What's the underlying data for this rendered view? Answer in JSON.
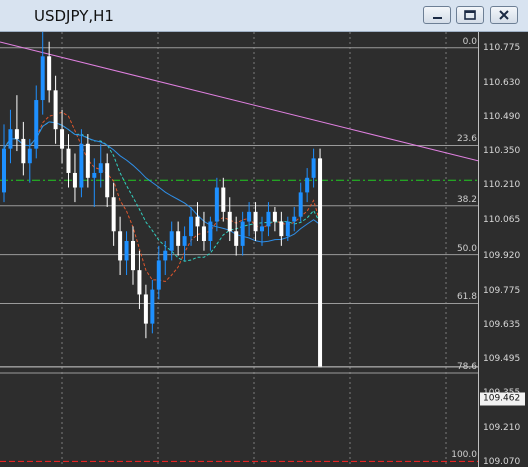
{
  "window": {
    "title": "USDJPY,H1",
    "buttons": {
      "minimize": "minimize-icon",
      "maximize": "maximize-icon",
      "close": "close-icon"
    }
  },
  "price_axis": {
    "labels": [
      "110.775",
      "110.630",
      "110.490",
      "110.350",
      "110.210",
      "110.065",
      "109.920",
      "109.775",
      "109.635",
      "109.495",
      "109.355",
      "109.210",
      "109.070"
    ],
    "current_price": "109.462"
  },
  "fibo_levels": [
    {
      "label": "0.0",
      "price": 110.775
    },
    {
      "label": "23.6",
      "price": 110.373
    },
    {
      "label": "38.2",
      "price": 110.125
    },
    {
      "label": "50.0",
      "price": 109.924
    },
    {
      "label": "61.8",
      "price": 109.723
    },
    {
      "label": "78.6",
      "price": 109.437
    },
    {
      "label": "100.0",
      "price": 109.073
    }
  ],
  "colors": {
    "background": "#2d2d2d",
    "bull": "#1e90ff",
    "bear": "#ffffff",
    "trendline": "#e080e0",
    "fibo": "#9a9a9a",
    "green_level": "#22cc22",
    "red_level": "#ff2222"
  },
  "chart_data": {
    "type": "candlestick",
    "symbol": "USDJPY",
    "timeframe": "H1",
    "ylim": [
      109.05,
      110.84
    ],
    "green_level": 110.23,
    "red_level": 109.09,
    "candles": [
      [
        110.18,
        110.46,
        110.14,
        110.36
      ],
      [
        110.36,
        110.52,
        110.3,
        110.44
      ],
      [
        110.44,
        110.58,
        110.35,
        110.4
      ],
      [
        110.4,
        110.47,
        110.25,
        110.3
      ],
      [
        110.3,
        110.4,
        110.22,
        110.36
      ],
      [
        110.36,
        110.62,
        110.32,
        110.56
      ],
      [
        110.56,
        110.84,
        110.5,
        110.74
      ],
      [
        110.74,
        110.8,
        110.55,
        110.6
      ],
      [
        110.6,
        110.66,
        110.38,
        110.44
      ],
      [
        110.44,
        110.52,
        110.3,
        110.36
      ],
      [
        110.36,
        110.42,
        110.2,
        110.26
      ],
      [
        110.26,
        110.34,
        110.14,
        110.2
      ],
      [
        110.2,
        110.44,
        110.16,
        110.38
      ],
      [
        110.38,
        110.42,
        110.2,
        110.24
      ],
      [
        110.24,
        110.32,
        110.12,
        110.26
      ],
      [
        110.26,
        110.38,
        110.2,
        110.3
      ],
      [
        110.3,
        110.34,
        110.12,
        110.16
      ],
      [
        110.16,
        110.22,
        109.96,
        110.02
      ],
      [
        110.02,
        110.08,
        109.84,
        109.9
      ],
      [
        109.9,
        110.02,
        109.84,
        109.98
      ],
      [
        109.98,
        110.04,
        109.8,
        109.86
      ],
      [
        109.86,
        109.94,
        109.7,
        109.76
      ],
      [
        109.76,
        109.8,
        109.58,
        109.64
      ],
      [
        109.64,
        109.82,
        109.6,
        109.78
      ],
      [
        109.78,
        109.96,
        109.74,
        109.9
      ],
      [
        109.9,
        109.98,
        109.84,
        109.94
      ],
      [
        109.94,
        110.06,
        109.9,
        110.02
      ],
      [
        110.02,
        110.06,
        109.92,
        109.96
      ],
      [
        109.96,
        110.04,
        109.9,
        110.0
      ],
      [
        110.0,
        110.12,
        109.96,
        110.08
      ],
      [
        110.08,
        110.14,
        109.98,
        110.04
      ],
      [
        110.04,
        110.1,
        109.94,
        109.98
      ],
      [
        109.98,
        110.08,
        109.94,
        110.06
      ],
      [
        110.06,
        110.24,
        110.02,
        110.2
      ],
      [
        110.2,
        110.24,
        110.06,
        110.1
      ],
      [
        110.1,
        110.16,
        109.98,
        110.02
      ],
      [
        110.02,
        110.08,
        109.92,
        109.96
      ],
      [
        109.96,
        110.1,
        109.92,
        110.06
      ],
      [
        110.06,
        110.14,
        110.0,
        110.1
      ],
      [
        110.1,
        110.14,
        109.98,
        110.02
      ],
      [
        110.02,
        110.08,
        109.96,
        110.04
      ],
      [
        110.04,
        110.14,
        110.0,
        110.1
      ],
      [
        110.1,
        110.12,
        110.02,
        110.06
      ],
      [
        110.06,
        110.1,
        109.96,
        110.0
      ],
      [
        110.0,
        110.08,
        109.98,
        110.06
      ],
      [
        110.06,
        110.12,
        110.02,
        110.08
      ],
      [
        110.08,
        110.22,
        110.06,
        110.18
      ],
      [
        110.18,
        110.28,
        110.14,
        110.24
      ],
      [
        110.24,
        110.36,
        110.2,
        110.32
      ],
      [
        110.32,
        110.36,
        109.46,
        109.46
      ]
    ]
  }
}
